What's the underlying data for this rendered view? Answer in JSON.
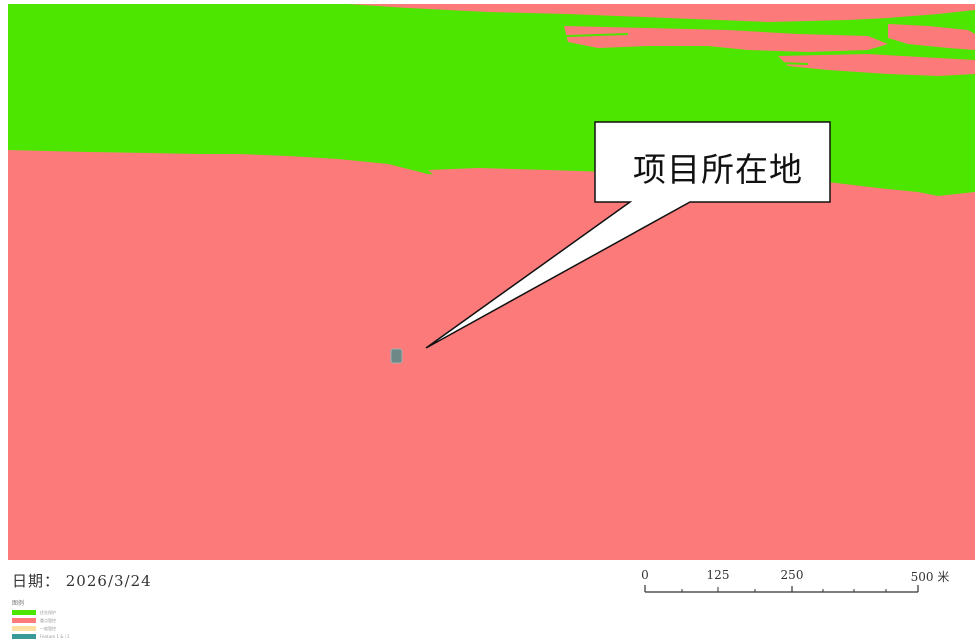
{
  "map": {
    "colors": {
      "green_zone": "#4ce600",
      "red_zone": "#fd7a7a",
      "yellow_zone": "#ffe0a0",
      "project_marker": "#6e8888",
      "callout_border": "#111111",
      "callout_fill": "#ffffff"
    },
    "callout": {
      "label": "项目所在地"
    }
  },
  "footer": {
    "date_text": "日期：  2026/3/24",
    "scale": {
      "ticks": [
        "0",
        "125",
        "250",
        "500 米"
      ]
    },
    "legend": {
      "title": "图例",
      "items": [
        {
          "label": "优先保护",
          "color": "#4ce600"
        },
        {
          "label": "重点管控",
          "color": "#fd7a7a"
        },
        {
          "label": "一般管控",
          "color": "#ffe0a0"
        },
        {
          "label": "Feature 1 & i 1",
          "color": "#3a9a9a"
        }
      ]
    }
  }
}
